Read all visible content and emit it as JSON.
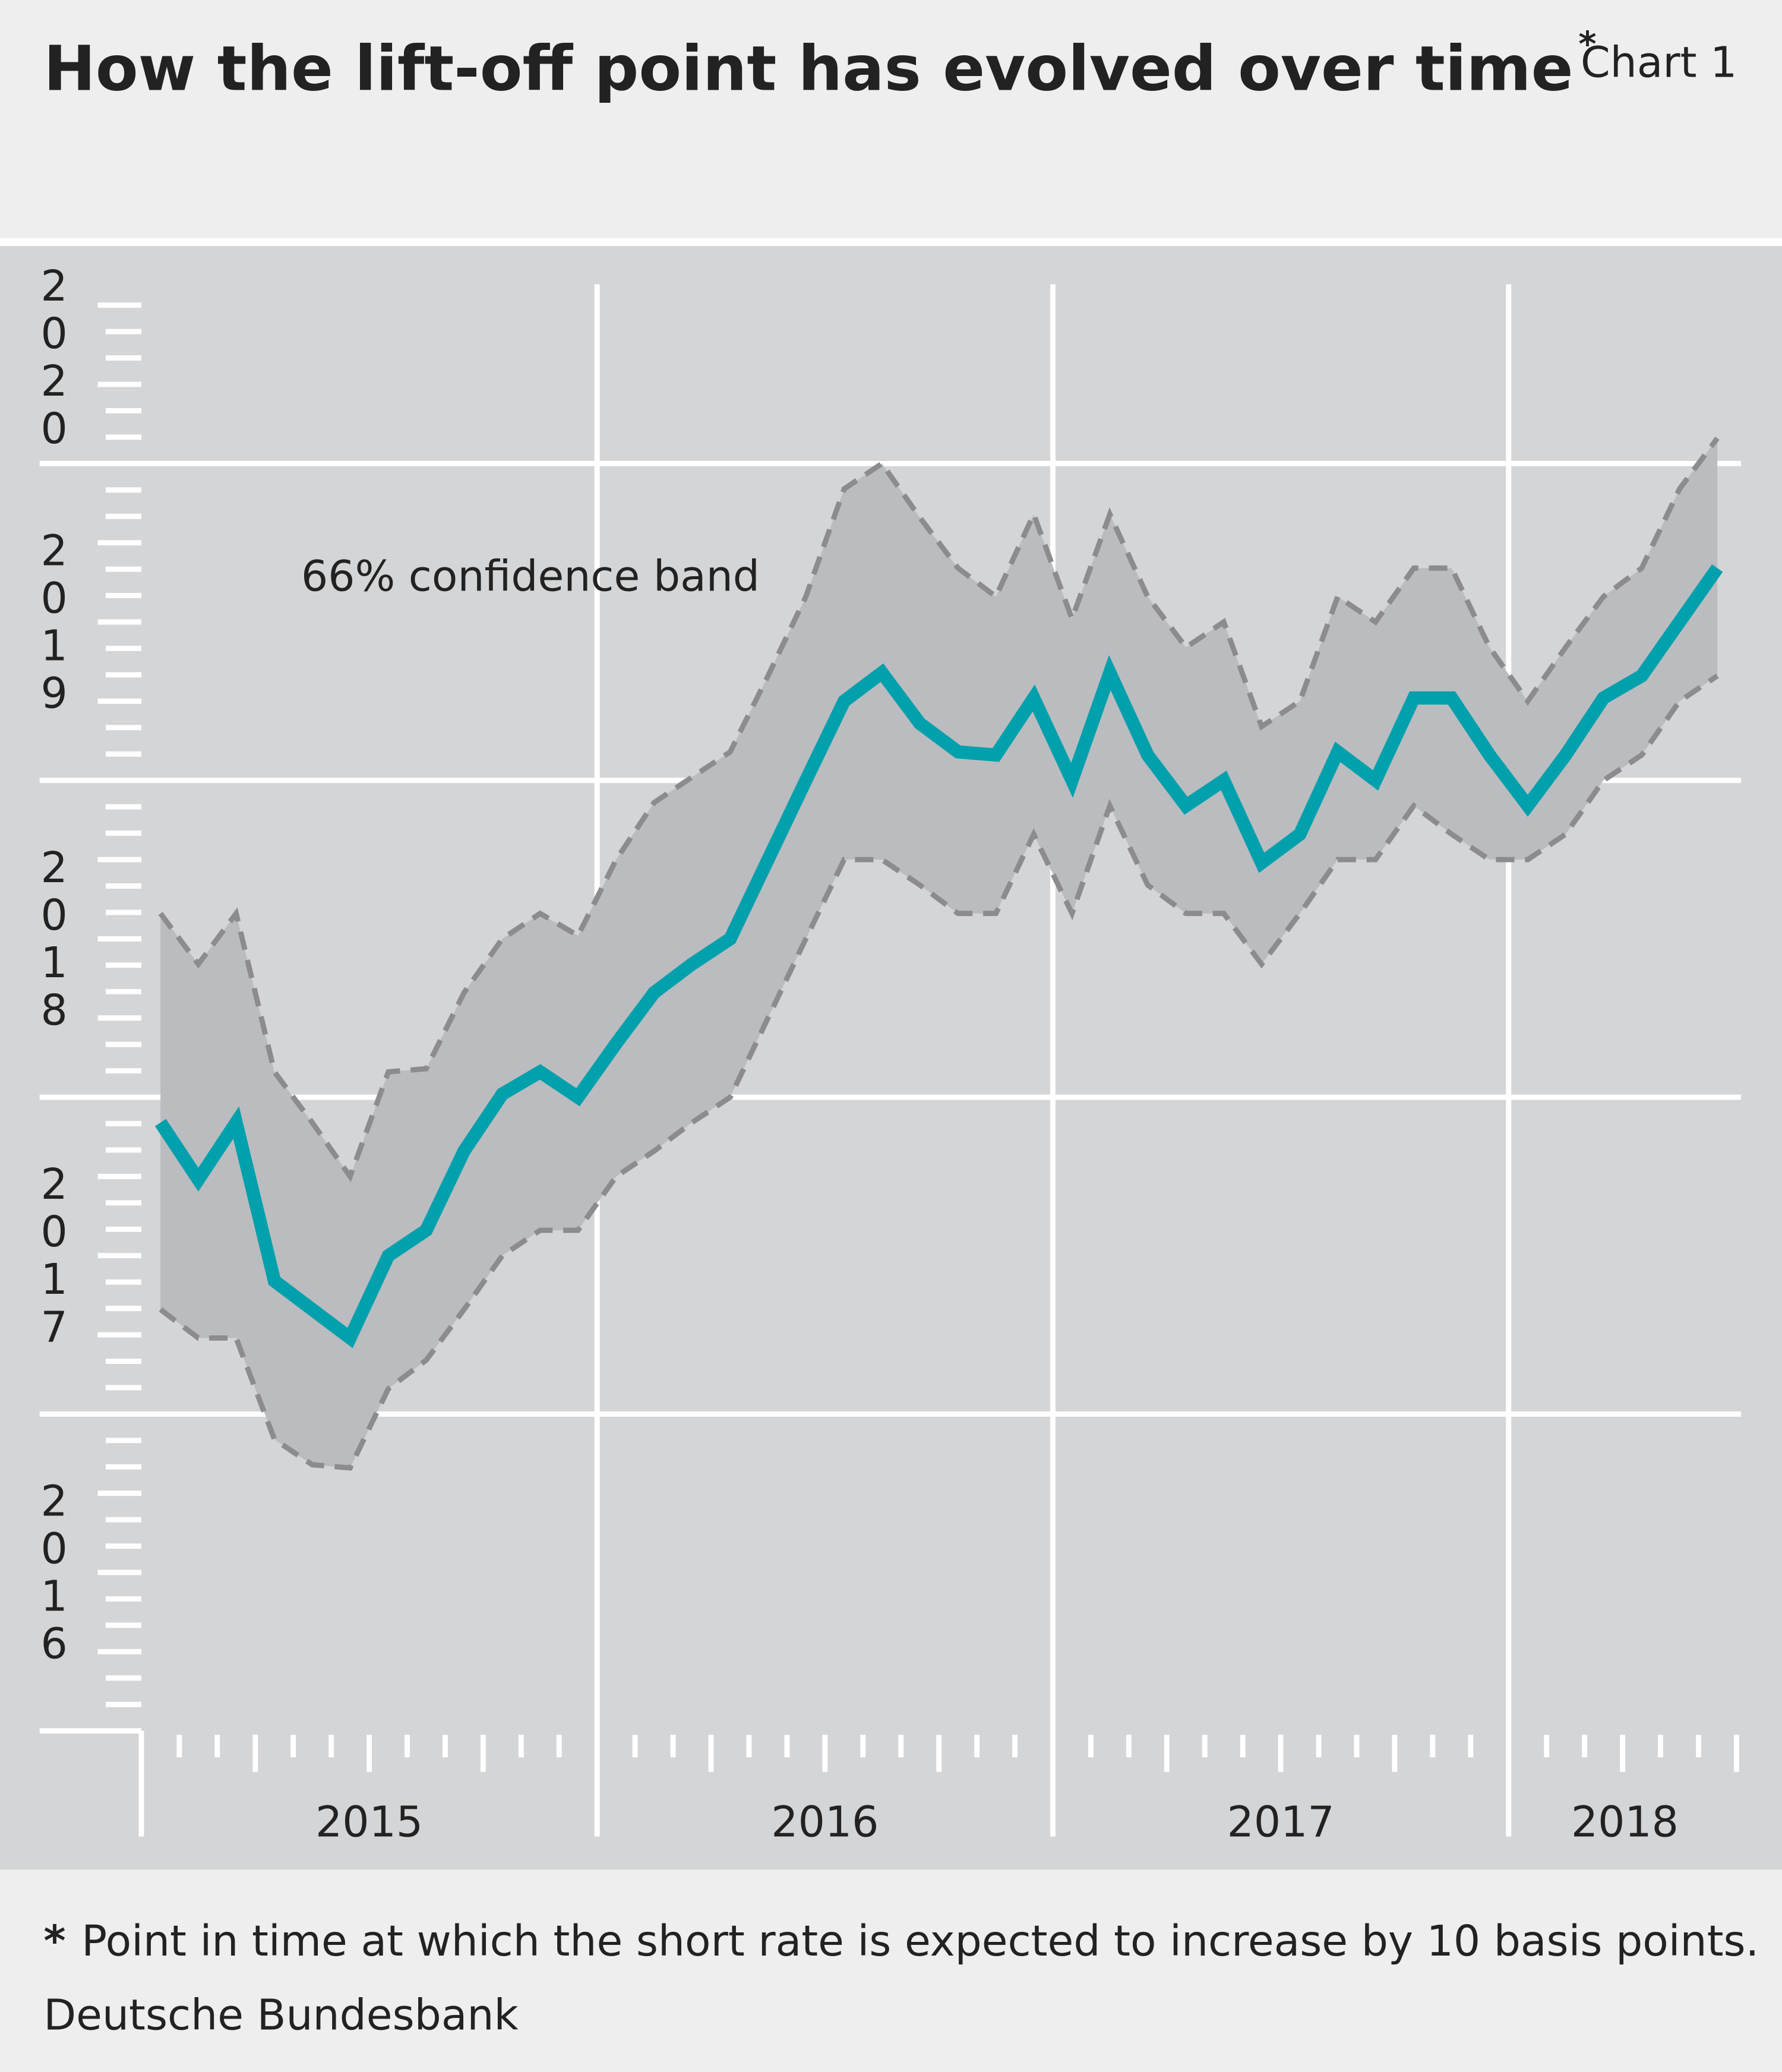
{
  "chart_data": {
    "type": "line",
    "title": "How the lift-off point has evolved over time",
    "title_note": "*",
    "chart_label": "Chart 1",
    "annotation": "66% confidence band",
    "footnote": {
      "marker": "*",
      "text": "Point in time at which the short rate is expected to increase by 10 basis points."
    },
    "source": "Deutsche Bundesbank",
    "x": [
      2015.042,
      2015.125,
      2015.208,
      2015.292,
      2015.375,
      2015.458,
      2015.542,
      2015.625,
      2015.708,
      2015.792,
      2015.875,
      2015.958,
      2016.042,
      2016.125,
      2016.208,
      2016.292,
      2016.375,
      2016.458,
      2016.542,
      2016.625,
      2016.708,
      2016.792,
      2016.875,
      2016.958,
      2017.042,
      2017.125,
      2017.208,
      2017.292,
      2017.375,
      2017.458,
      2017.542,
      2017.625,
      2017.708,
      2017.792,
      2017.875,
      2017.958,
      2018.042,
      2018.125,
      2018.208,
      2018.292,
      2018.375,
      2018.458
    ],
    "series": [
      {
        "color": "#00a0ad",
        "values": [
          2017.92,
          2017.74,
          2017.92,
          2017.42,
          2017.33,
          2017.24,
          2017.5,
          2017.58,
          2017.83,
          2018.01,
          2018.08,
          2018.0,
          2018.17,
          2018.33,
          2018.42,
          2018.5,
          2018.75,
          2019.0,
          2019.25,
          2019.34,
          2019.18,
          2019.09,
          2019.08,
          2019.26,
          2019.0,
          2019.34,
          2019.08,
          2018.92,
          2019.0,
          2018.74,
          2018.83,
          2019.09,
          2019.0,
          2019.26,
          2019.26,
          2019.08,
          2018.92,
          2019.08,
          2019.26,
          2019.33,
          2019.5,
          2019.67
        ]
      }
    ],
    "band": {
      "color": "#bbbcbf",
      "edge_color": "#8c8c8e",
      "upper": [
        2018.58,
        2018.42,
        2018.58,
        2018.08,
        2017.92,
        2017.75,
        2018.08,
        2018.09,
        2018.33,
        2018.5,
        2018.58,
        2018.51,
        2018.75,
        2018.93,
        2019.01,
        2019.09,
        2019.33,
        2019.58,
        2019.92,
        2020.0,
        2019.83,
        2019.67,
        2019.58,
        2019.84,
        2019.51,
        2019.84,
        2019.58,
        2019.42,
        2019.5,
        2019.17,
        2019.25,
        2019.58,
        2019.5,
        2019.67,
        2019.67,
        2019.42,
        2019.25,
        2019.42,
        2019.58,
        2019.67,
        2019.92,
        2020.08
      ],
      "lower": [
        2017.33,
        2017.24,
        2017.24,
        2016.92,
        2016.84,
        2016.83,
        2017.08,
        2017.17,
        2017.33,
        2017.5,
        2017.58,
        2017.58,
        2017.75,
        2017.83,
        2017.92,
        2018.0,
        2018.25,
        2018.5,
        2018.75,
        2018.75,
        2018.67,
        2018.58,
        2018.58,
        2018.83,
        2018.58,
        2018.92,
        2018.67,
        2018.58,
        2018.58,
        2018.42,
        2018.58,
        2018.75,
        2018.75,
        2018.92,
        2018.83,
        2018.75,
        2018.75,
        2018.83,
        2019.0,
        2019.08,
        2019.25,
        2019.33
      ]
    },
    "xlim": [
      2015,
      2018.51
    ],
    "ylim": [
      2016,
      2020.67
    ],
    "xticks": [
      {
        "value": 2015.5,
        "label": "2015"
      },
      {
        "value": 2016.5,
        "label": "2016"
      },
      {
        "value": 2017.5,
        "label": "2017"
      },
      {
        "value": 2018.5,
        "label": "2018"
      }
    ],
    "yticks": [
      {
        "value": 2016.5,
        "label": "2016"
      },
      {
        "value": 2017.5,
        "label": "2017"
      },
      {
        "value": 2018.5,
        "label": "2018"
      },
      {
        "value": 2019.5,
        "label": "2019"
      },
      {
        "value": 2020.5,
        "label": "2020"
      }
    ],
    "xgrid": [
      2015,
      2016,
      2017,
      2018
    ],
    "ygrid": [
      2016,
      2017,
      2018,
      2019,
      2020
    ],
    "grid": true
  }
}
